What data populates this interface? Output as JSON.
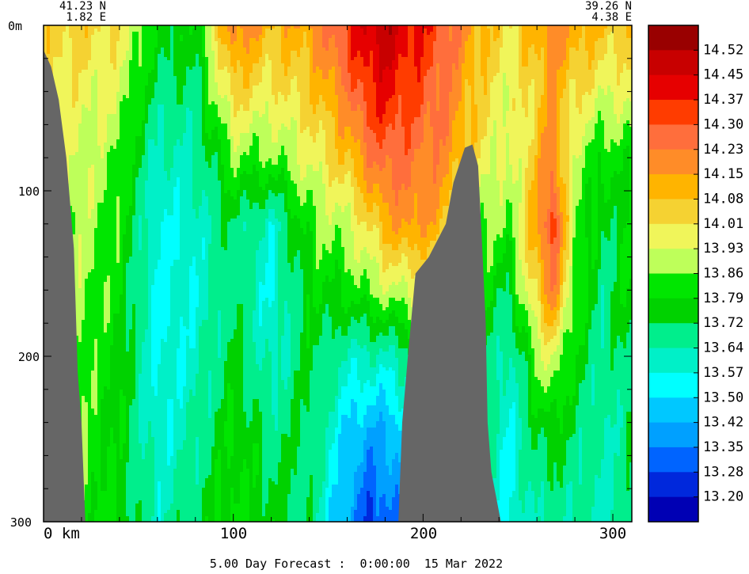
{
  "chart_data": {
    "type": "heatmap",
    "title": "",
    "xlabel": "",
    "ylabel": "",
    "start_point": {
      "lat": "41.23 N",
      "lon": "1.82 E"
    },
    "end_point": {
      "lat": "39.26 N",
      "lon": "4.38 E"
    },
    "x_range_km": [
      0,
      310
    ],
    "y_range_m": [
      0,
      300
    ],
    "y_inverted": true,
    "x_ticks": [
      {
        "value": 0,
        "label": "0 km"
      },
      {
        "value": 100,
        "label": "100"
      },
      {
        "value": 200,
        "label": "200"
      },
      {
        "value": 300,
        "label": "300"
      }
    ],
    "y_ticks": [
      {
        "value": 0,
        "label": "0m"
      },
      {
        "value": 100,
        "label": "100"
      },
      {
        "value": 200,
        "label": "200"
      },
      {
        "value": 300,
        "label": "300"
      }
    ],
    "colorbar": {
      "labels": [
        "14.52",
        "14.45",
        "14.37",
        "14.30",
        "14.23",
        "14.15",
        "14.08",
        "14.01",
        "13.93",
        "13.86",
        "13.79",
        "13.72",
        "13.64",
        "13.57",
        "13.50",
        "13.42",
        "13.35",
        "13.28",
        "13.20"
      ],
      "colors": [
        "#990000",
        "#c80000",
        "#e60000",
        "#ff3c00",
        "#ff6e3c",
        "#ff8c28",
        "#ffb400",
        "#f5d232",
        "#f0f55a",
        "#beff5a",
        "#00e600",
        "#00d200",
        "#00ee8c",
        "#00f0c8",
        "#00ffff",
        "#00c8ff",
        "#00a0ff",
        "#0064ff",
        "#0028dc",
        "#0000b4"
      ]
    },
    "land_color": "#666666",
    "profiles": [
      {
        "x": 0,
        "v": [
          14.05,
          14.0,
          13.95,
          13.9,
          13.88,
          13.85,
          13.84,
          13.83
        ]
      },
      {
        "x": 20,
        "v": [
          14.05,
          13.97,
          13.92,
          13.9,
          13.88,
          13.86,
          13.85,
          13.84
        ]
      },
      {
        "x": 40,
        "v": [
          14.0,
          13.93,
          13.86,
          13.82,
          13.8,
          13.78,
          13.77,
          13.77
        ]
      },
      {
        "x": 60,
        "v": [
          13.78,
          13.7,
          13.62,
          13.56,
          13.55,
          13.55,
          13.58,
          13.62
        ]
      },
      {
        "x": 80,
        "v": [
          13.76,
          13.7,
          13.64,
          13.6,
          13.58,
          13.6,
          13.65,
          13.72
        ]
      },
      {
        "x": 100,
        "v": [
          14.22,
          14.05,
          13.86,
          13.72,
          13.7,
          13.74,
          13.8,
          13.82
        ]
      },
      {
        "x": 120,
        "v": [
          14.1,
          13.98,
          13.85,
          13.6,
          13.56,
          13.6,
          13.7,
          13.76
        ]
      },
      {
        "x": 140,
        "v": [
          14.15,
          14.05,
          13.95,
          13.84,
          13.78,
          13.74,
          13.72,
          13.7
        ]
      },
      {
        "x": 160,
        "v": [
          14.35,
          14.22,
          14.08,
          13.92,
          13.8,
          13.62,
          13.48,
          13.4
        ]
      },
      {
        "x": 170,
        "v": [
          14.45,
          14.35,
          14.2,
          14.0,
          13.86,
          13.62,
          13.4,
          13.28
        ]
      },
      {
        "x": 180,
        "v": [
          14.5,
          14.4,
          14.28,
          14.12,
          13.9,
          13.62,
          13.4,
          13.3
        ]
      },
      {
        "x": 195,
        "v": [
          14.4,
          14.32,
          14.24,
          14.18,
          13.95,
          13.7,
          13.5,
          13.4
        ]
      },
      {
        "x": 210,
        "v": [
          14.3,
          14.25,
          14.2,
          14.1,
          13.9,
          13.75,
          13.6,
          13.5
        ]
      },
      {
        "x": 230,
        "v": [
          14.1,
          14.05,
          14.0,
          13.88,
          13.82,
          13.76,
          13.7,
          13.62
        ]
      },
      {
        "x": 245,
        "v": [
          14.02,
          13.95,
          13.9,
          13.85,
          13.72,
          13.6,
          13.55,
          13.55
        ]
      },
      {
        "x": 260,
        "v": [
          14.12,
          14.05,
          14.08,
          14.15,
          14.05,
          13.88,
          13.72,
          13.65
        ]
      },
      {
        "x": 268,
        "v": [
          14.2,
          14.15,
          14.22,
          14.36,
          14.22,
          13.95,
          13.75,
          13.65
        ]
      },
      {
        "x": 280,
        "v": [
          14.15,
          14.02,
          13.9,
          13.88,
          13.86,
          13.78,
          13.7,
          13.65
        ]
      },
      {
        "x": 295,
        "v": [
          14.08,
          13.95,
          13.8,
          13.72,
          13.68,
          13.65,
          13.62,
          13.62
        ]
      },
      {
        "x": 310,
        "v": [
          14.05,
          13.95,
          13.82,
          13.8,
          13.8,
          13.74,
          13.7,
          13.68
        ]
      }
    ],
    "profile_depths_m": [
      0,
      40,
      80,
      120,
      160,
      200,
      250,
      300
    ],
    "land_left_boundary": [
      [
        0,
        15
      ],
      [
        4,
        25
      ],
      [
        8,
        45
      ],
      [
        12,
        80
      ],
      [
        16,
        135
      ],
      [
        18,
        210
      ],
      [
        20,
        240
      ],
      [
        22,
        300
      ],
      [
        0,
        300
      ]
    ],
    "land_seamount": [
      [
        187,
        300
      ],
      [
        189,
        240
      ],
      [
        192,
        200
      ],
      [
        196,
        150
      ],
      [
        203,
        140
      ],
      [
        212,
        120
      ],
      [
        216,
        95
      ],
      [
        222,
        74
      ],
      [
        226,
        72
      ],
      [
        229,
        85
      ],
      [
        231,
        130
      ],
      [
        233,
        180
      ],
      [
        234,
        240
      ],
      [
        236,
        270
      ],
      [
        241,
        300
      ]
    ]
  },
  "footer": "5.00 Day Forecast :  0:00:00  15 Mar 2022"
}
